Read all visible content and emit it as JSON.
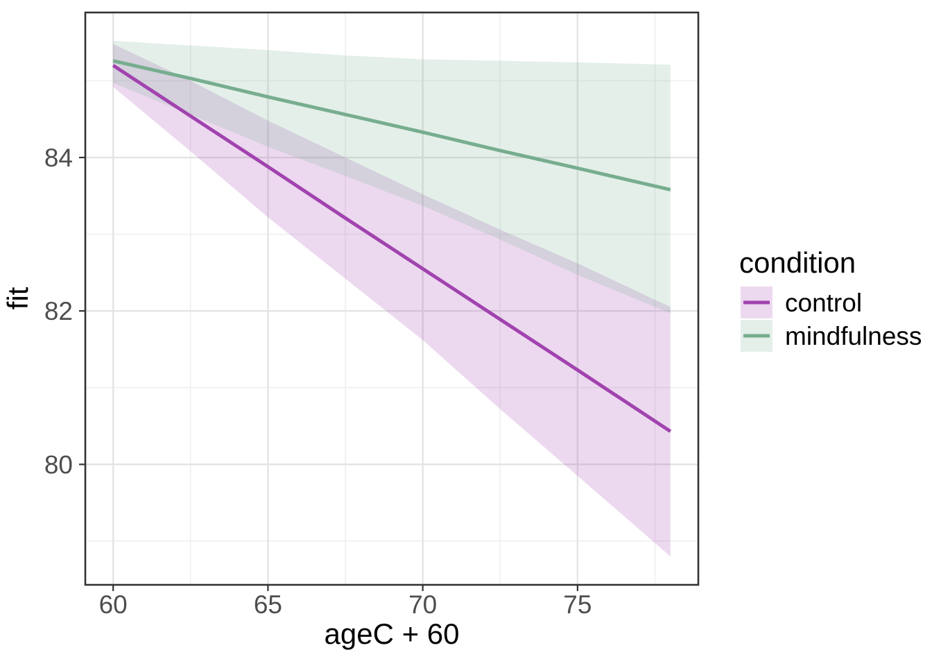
{
  "chart_data": {
    "type": "line",
    "title": "",
    "xlabel": "ageC + 60",
    "ylabel": "fit",
    "xlim": [
      59.1,
      78.9
    ],
    "ylim": [
      78.43,
      85.89
    ],
    "x_ticks": [
      "60",
      "65",
      "70",
      "75"
    ],
    "x_tick_values": [
      60,
      65,
      70,
      75
    ],
    "y_ticks": [
      "80",
      "82",
      "84"
    ],
    "y_tick_values": [
      80,
      82,
      84
    ],
    "x_minor_values": [
      62.5,
      67.5,
      72.5,
      77.5
    ],
    "y_minor_values": [
      79,
      81,
      83,
      85
    ],
    "grid": true,
    "legend": {
      "title": "condition",
      "position": "right"
    },
    "series": [
      {
        "name": "control",
        "color": "#A143AF",
        "fill_rgba": "rgba(161,67,175,0.2)",
        "x": [
          60,
          62.5,
          65,
          67.5,
          70,
          72.5,
          75,
          78
        ],
        "y": [
          85.2,
          84.54,
          83.88,
          83.21,
          82.55,
          81.89,
          81.23,
          80.43
        ],
        "lower": [
          84.92,
          84.08,
          83.22,
          82.42,
          81.62,
          80.72,
          79.85,
          78.8
        ],
        "upper": [
          85.48,
          85.0,
          84.48,
          84.0,
          83.52,
          83.06,
          82.62,
          82.05
        ]
      },
      {
        "name": "mindfulness",
        "color": "#77AD8F",
        "fill_rgba": "rgba(119,173,143,0.2)",
        "x": [
          60,
          62.5,
          65,
          67.5,
          70,
          72.5,
          75,
          78
        ],
        "y": [
          85.26,
          85.03,
          84.79,
          84.56,
          84.33,
          84.09,
          83.86,
          83.58
        ],
        "lower": [
          84.97,
          84.56,
          84.14,
          83.76,
          83.37,
          82.93,
          82.47,
          81.97
        ],
        "upper": [
          85.52,
          85.46,
          85.4,
          85.33,
          85.28,
          85.26,
          85.24,
          85.21
        ]
      }
    ]
  }
}
